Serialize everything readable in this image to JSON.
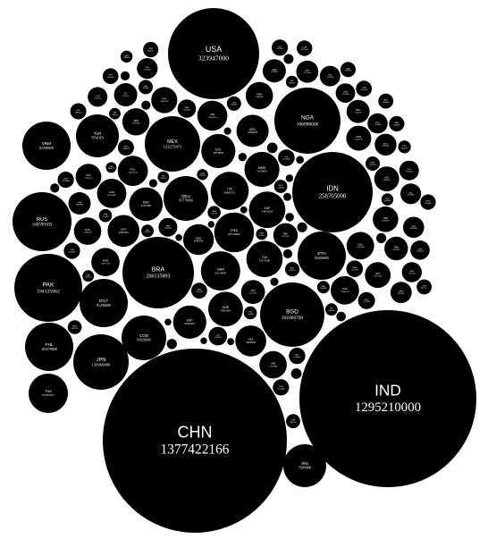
{
  "chart_data": {
    "type": "bubble",
    "title": "",
    "colors": {
      "bubble_fill": "#000000",
      "label_text": "#ffffff",
      "background": "#ffffff"
    },
    "points": [
      {
        "code": "CHN",
        "value": "1377422166",
        "population": 1377422166
      },
      {
        "code": "IND",
        "value": "1295210000",
        "population": 1295210000
      },
      {
        "code": "USA",
        "value": "323947000",
        "population": 323947000
      },
      {
        "code": "IDN",
        "value": "258705000",
        "population": 258705000
      },
      {
        "code": "BRA",
        "value": "206135893",
        "population": 206135893
      },
      {
        "code": "PAK",
        "value": "194125062",
        "population": 194125062
      },
      {
        "code": "NGA",
        "value": "186988000",
        "population": 186988000
      },
      {
        "code": "BGD",
        "value": "161006790",
        "population": 161006790
      },
      {
        "code": "RUS",
        "value": "146599183",
        "population": 146599183
      },
      {
        "code": "JPN",
        "value": "126960000",
        "population": 126960000
      },
      {
        "code": "MEX",
        "value": "122273473",
        "population": 122273473
      },
      {
        "code": "PHL",
        "value": "103279800",
        "population": 103279800
      },
      {
        "code": "VNM",
        "value": "92700000",
        "population": 92700000
      },
      {
        "code": "ETH",
        "value": "92206005",
        "population": 92206005
      },
      {
        "code": "EGY",
        "value": "91290000",
        "population": 91290000
      },
      {
        "code": "DEU",
        "value": "81770900",
        "population": 81770900
      },
      {
        "code": "IRN",
        "value": "79369900",
        "population": 79369900
      },
      {
        "code": "TUR",
        "value": "78741053",
        "population": 78741053
      },
      {
        "code": "COD",
        "value": "85026000",
        "population": 85026000
      },
      {
        "code": "THA",
        "value": "65327652",
        "population": 65327652
      },
      {
        "code": "FRA",
        "value": "66710000",
        "population": 66710000
      },
      {
        "code": "GBR",
        "value": "65110000",
        "population": 65110000
      },
      {
        "code": "ITA",
        "value": "60665551",
        "population": 60665551
      },
      {
        "code": "ZAF",
        "value": "55653654",
        "population": 55653654
      },
      {
        "code": "TZA",
        "value": "55155000",
        "population": 55155000
      },
      {
        "code": "MMR",
        "value": "51419420",
        "population": 51419420
      },
      {
        "code": "KOR",
        "value": "50801405",
        "population": 50801405
      },
      {
        "code": "COL",
        "value": "48759958",
        "population": 48759958
      },
      {
        "code": "KEN",
        "value": "47251000",
        "population": 47251000
      },
      {
        "code": "ESP",
        "value": "46438422",
        "population": 46438422
      },
      {
        "code": "ARG",
        "value": "43590400",
        "population": 43590400
      },
      {
        "code": "UKR",
        "value": "42692393",
        "population": 42692393
      },
      {
        "code": "SDN",
        "value": "39598700",
        "population": 39598700
      },
      {
        "code": "DZA",
        "value": "40400000",
        "population": 40400000
      },
      {
        "code": "UGA",
        "value": "33860700",
        "population": 33860700
      },
      {
        "code": "IRQ",
        "value": "37883543",
        "population": 37883543
      },
      {
        "code": "POL",
        "value": "38437239",
        "population": 38437239
      },
      {
        "code": "CAN",
        "value": "36155487",
        "population": 36155487
      },
      {
        "code": "MAR",
        "value": "33337529",
        "population": 33337529
      },
      {
        "code": "AFG",
        "value": "27657145",
        "population": 27657145
      },
      {
        "code": "SAU",
        "value": "31742308",
        "population": 31742308
      },
      {
        "code": "UZB",
        "value": "31576400",
        "population": 31576400
      },
      {
        "code": "PER",
        "value": "31488700",
        "population": 31488700
      },
      {
        "code": "VEN",
        "value": "31028700",
        "population": 31028700
      },
      {
        "code": "MYS",
        "value": "31405416",
        "population": 31405416
      },
      {
        "code": "NPL",
        "value": "28431500",
        "population": 28431500
      },
      {
        "code": "MOZ",
        "value": "26423700",
        "population": 26423700
      },
      {
        "code": "GHA",
        "value": "27670174",
        "population": 27670174
      },
      {
        "code": "YEM",
        "value": "27478000",
        "population": 27478000
      },
      {
        "code": "AGO",
        "value": "25868000",
        "population": 25868000
      },
      {
        "code": "PRK",
        "value": "25155000",
        "population": 25155000
      },
      {
        "code": "AUS",
        "value": "24117360",
        "population": 24117360
      },
      {
        "code": "MDG",
        "value": "22434363",
        "population": 22434363
      },
      {
        "code": "CMR",
        "value": "22709892",
        "population": 22709892
      },
      {
        "code": "CIV",
        "value": "22671331",
        "population": 22671331
      },
      {
        "code": "TWN",
        "value": "23503349",
        "population": 23503349
      },
      {
        "code": "NER",
        "value": "20715000",
        "population": 20715000
      },
      {
        "code": "LKA",
        "value": "20966000",
        "population": 20966000
      },
      {
        "code": "ROU",
        "value": "19861408",
        "population": 19861408
      },
      {
        "code": "BFA",
        "value": "19034397",
        "population": 19034397
      },
      {
        "code": "SYR",
        "value": "18564000",
        "population": 18564000
      },
      {
        "code": "MWI",
        "value": "16832910",
        "population": 16832910
      },
      {
        "code": "MLI",
        "value": "18135000",
        "population": 18135000
      },
      {
        "code": "CHL",
        "value": "18191900",
        "population": 18191900
      },
      {
        "code": "KAZ",
        "value": "17753200",
        "population": 17753200
      },
      {
        "code": "NLD",
        "value": "17019800",
        "population": 17019800
      },
      {
        "code": "ZMB",
        "value": "15933883",
        "population": 15933883
      },
      {
        "code": "GTM",
        "value": "16176133",
        "population": 16176133
      },
      {
        "code": "ECU",
        "value": "16278844",
        "population": 16278844
      },
      {
        "code": "ZWE",
        "value": "14240168",
        "population": 14240168
      },
      {
        "code": "KHM",
        "value": "15626444",
        "population": 15626444
      },
      {
        "code": "SEN",
        "value": "14799859",
        "population": 14799859
      },
      {
        "code": "TCD",
        "value": "14497000",
        "population": 14497000
      },
      {
        "code": "SOM",
        "value": "11079000",
        "population": 11079000
      },
      {
        "code": "GIN",
        "value": "11628000",
        "population": 11628000
      },
      {
        "code": "SSD",
        "value": "12131000",
        "population": 12131000
      },
      {
        "code": "RWA",
        "value": "11553188",
        "population": 11553188
      },
      {
        "code": "TUN",
        "value": "11154400",
        "population": 11154400
      },
      {
        "code": "CUB",
        "value": "11239004",
        "population": 11239004
      },
      {
        "code": "BEL",
        "value": "11248330",
        "population": 11248330
      },
      {
        "code": "BEN",
        "value": "10653654",
        "population": 10653654
      },
      {
        "code": "BOL",
        "value": "10985059",
        "population": 10985059
      },
      {
        "code": "HTI",
        "value": "11078033",
        "population": 11078033
      },
      {
        "code": "GRC",
        "value": "10858018",
        "population": 10858018
      },
      {
        "code": "DOM",
        "value": "10075045",
        "population": 10075045
      },
      {
        "code": "CZE",
        "value": "10553843",
        "population": 10553843
      },
      {
        "code": "PRT",
        "value": "10341330",
        "population": 10341330
      },
      {
        "code": "SWE",
        "value": "9851017",
        "population": 9851017
      },
      {
        "code": "AZE",
        "value": "9730500",
        "population": 9730500
      },
      {
        "code": "HUN",
        "value": "9823000",
        "population": 9823000
      },
      {
        "code": "BLR",
        "value": "9498600",
        "population": 9498600
      },
      {
        "code": "HND",
        "value": "8576532",
        "population": 8576532
      },
      {
        "code": "TJK",
        "value": "8593600",
        "population": 8593600
      },
      {
        "code": "AUT",
        "value": "8725931",
        "population": 8725931
      },
      {
        "code": "ISR",
        "value": "8541000",
        "population": 8541000
      },
      {
        "code": "CHE",
        "value": "8401120",
        "population": 8401120
      },
      {
        "code": "PNG",
        "value": "8083700",
        "population": 8083700
      },
      {
        "code": "TGO",
        "value": "7143000",
        "population": 7143000
      },
      {
        "code": "SRB",
        "value": "7114393",
        "population": 7114393
      },
      {
        "code": "HKG",
        "value": "7346700",
        "population": 7346700
      },
      {
        "code": "BGR",
        "value": "7153784",
        "population": 7153784
      },
      {
        "code": "PRY",
        "value": "6854536",
        "population": 6854536
      },
      {
        "code": "LAO",
        "value": "6492400",
        "population": 6492400
      },
      {
        "code": "LBY",
        "value": "6385000",
        "population": 6385000
      },
      {
        "code": "JOR",
        "value": "9531712",
        "population": 9531712
      },
      {
        "code": "SLV",
        "value": "6520675",
        "population": 6520675
      },
      {
        "code": "NIC",
        "value": "6262703",
        "population": 6262703
      },
      {
        "code": "KGZ",
        "value": "6019480",
        "population": 6019480
      },
      {
        "code": "DNK",
        "value": "5707251",
        "population": 5707251
      },
      {
        "code": "SGP",
        "value": "5535000",
        "population": 5535000
      },
      {
        "code": "FIN",
        "value": "5488543",
        "population": 5488543
      },
      {
        "code": "SVK",
        "value": "5426252",
        "population": 5426252
      },
      {
        "code": "NOR",
        "value": "5223256",
        "population": 5223256
      },
      {
        "code": "CRI",
        "value": "4890379",
        "population": 4890379
      },
      {
        "code": "IRL",
        "value": "4635400",
        "population": 4635400
      },
      {
        "code": "NZL",
        "value": "4697854",
        "population": 4697854
      },
      {
        "code": "LBN",
        "value": "5988000",
        "population": 5988000
      },
      {
        "code": "OMN",
        "value": "4420133",
        "population": 4420133
      },
      {
        "code": "PAN",
        "value": "4034119",
        "population": 4034119
      },
      {
        "code": "HRV",
        "value": "4190669",
        "population": 4190669
      },
      {
        "code": "GEO",
        "value": "3720400",
        "population": 3720400
      },
      {
        "code": "URY",
        "value": "3480222",
        "population": 3480222
      },
      {
        "code": "MNG",
        "value": "3093100",
        "population": 3093100
      },
      {
        "code": "ARM",
        "value": "2994400",
        "population": 2994400
      },
      {
        "code": "ALB",
        "value": "2886026",
        "population": 2886026
      },
      {
        "code": "LTU",
        "value": "2872294",
        "population": 2872294
      },
      {
        "code": "QAT",
        "value": "2587564",
        "population": 2587564
      },
      {
        "code": "JAM",
        "value": "2723246",
        "population": 2723246
      },
      {
        "code": "NAM",
        "value": "2324388",
        "population": 2324388
      },
      {
        "code": "BWA",
        "value": "2230905",
        "population": 2230905
      },
      {
        "code": "LSO",
        "value": "1894194",
        "population": 1894194
      },
      {
        "code": "GMB",
        "value": "1882450",
        "population": 1882450
      },
      {
        "code": "SVN",
        "value": "2064188",
        "population": 2064188
      },
      {
        "code": "LVA",
        "value": "1961600",
        "population": 1961600
      },
      {
        "code": "MKD",
        "value": "2058539",
        "population": 2058539
      },
      {
        "code": "GAB",
        "value": "1802278",
        "population": 1802278
      },
      {
        "code": "KWT",
        "value": "4183658",
        "population": 4183658
      },
      {
        "code": "ARE",
        "value": "9856000",
        "population": 9856000
      },
      {
        "code": "BIH",
        "value": "3531159",
        "population": 3531159
      },
      {
        "code": "MDA",
        "value": "3553100",
        "population": 3553100
      },
      {
        "code": "PRI",
        "value": "3474182",
        "population": 3474182
      }
    ]
  }
}
